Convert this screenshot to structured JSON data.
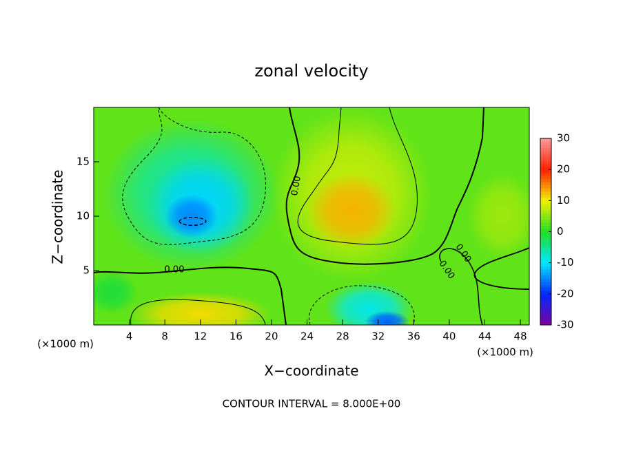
{
  "chart_data": {
    "type": "contour",
    "title": "zonal velocity",
    "x_label": "X−coordinate",
    "y_label": "Z−coordinate",
    "x_unit": "(×1000 m)",
    "x_unit_right": "(×1000 m)",
    "footer": "CONTOUR INTERVAL = 8.000E+00",
    "contour_labels": [
      "0.00",
      "0.00",
      "0.00",
      "0.00"
    ],
    "xlim": [
      0,
      49
    ],
    "xticks": [
      4,
      8,
      12,
      16,
      20,
      24,
      28,
      32,
      36,
      40,
      44,
      48
    ],
    "ylim": [
      0,
      20
    ],
    "yticks": [
      5,
      10,
      15
    ],
    "clim": [
      -30,
      30
    ],
    "cticks": [
      30,
      20,
      10,
      0,
      -10,
      -20,
      -30
    ],
    "colorscale": [
      "#ff9a9a",
      "#ff2000",
      "#f0f000",
      "#22dd22",
      "#00e8ff",
      "#0028ff",
      "#8000a0"
    ],
    "base_value": 3,
    "features": [
      {
        "x": 11,
        "z": 12,
        "sx": 10,
        "sz": 7,
        "value": -6
      },
      {
        "x": 12,
        "z": 11,
        "sx": 6,
        "sz": 4.5,
        "value": -11
      },
      {
        "x": 11,
        "z": 10,
        "sx": 3,
        "sz": 2,
        "value": -15
      },
      {
        "x": 29,
        "z": 12,
        "sx": 9,
        "sz": 8,
        "value": 8
      },
      {
        "x": 29,
        "z": 10.5,
        "sx": 5,
        "sz": 3.5,
        "value": 13
      },
      {
        "x": 12,
        "z": 1,
        "sx": 8,
        "sz": 2,
        "value": 11
      },
      {
        "x": 31,
        "z": 1.5,
        "sx": 5,
        "sz": 2.5,
        "value": -9
      },
      {
        "x": 33,
        "z": 0.3,
        "sx": 2.5,
        "sz": 1,
        "value": -17
      },
      {
        "x": 46,
        "z": 10,
        "sx": 4,
        "sz": 4,
        "value": 6
      },
      {
        "x": 2,
        "z": 3,
        "sx": 3,
        "sz": 2,
        "value": -1
      }
    ]
  }
}
